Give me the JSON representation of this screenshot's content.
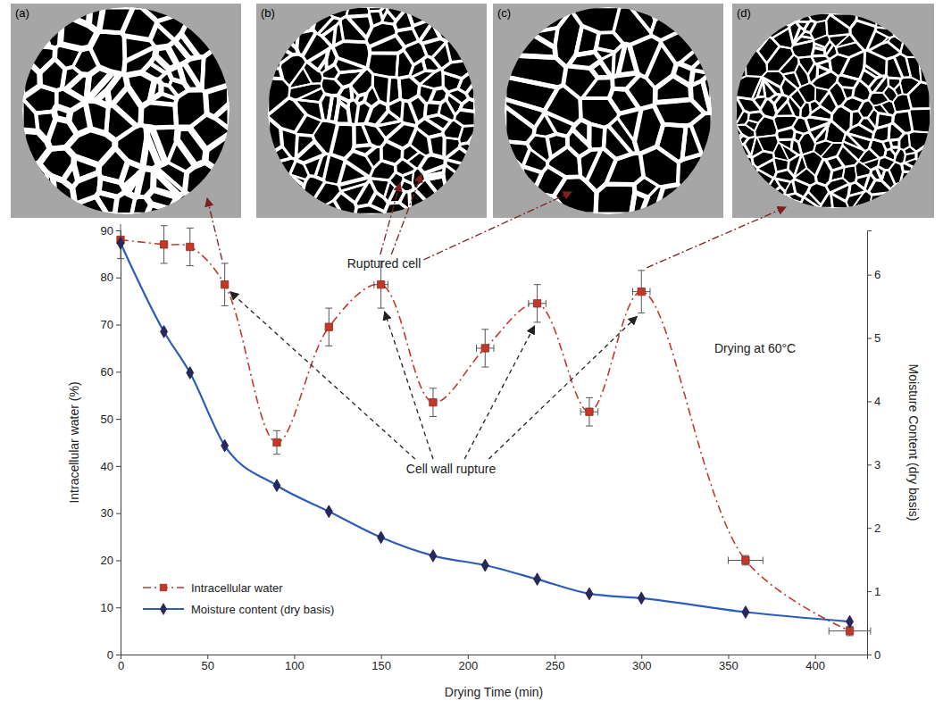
{
  "chart_data": {
    "type": "line",
    "x_label": "Drying Time (min)",
    "y_label": "Intracellular water (%)",
    "y2_label": "Moisture Content (dry basis)",
    "x": [
      0,
      25,
      40,
      60,
      90,
      120,
      150,
      180,
      210,
      240,
      270,
      300,
      360,
      420
    ],
    "xlim": [
      0,
      430
    ],
    "xticks": [
      0,
      50,
      100,
      150,
      200,
      250,
      300,
      350,
      400
    ],
    "ylim": [
      0,
      90
    ],
    "yticks": [
      0,
      10,
      20,
      30,
      40,
      50,
      60,
      70,
      80,
      90
    ],
    "y2lim": [
      0,
      6.7
    ],
    "y2ticks": [
      0,
      1,
      2,
      3,
      4,
      5,
      6
    ],
    "grid": false,
    "legend": "lower left",
    "series": [
      {
        "name": "Intracellular water",
        "color": "#c0392b",
        "marker": "square",
        "line_style": "dashdot",
        "values": [
          88,
          87,
          86.5,
          78.5,
          45,
          69.5,
          78.5,
          53.5,
          65,
          74.5,
          51.5,
          77,
          20,
          5
        ],
        "y_error": [
          4,
          4,
          4,
          4.5,
          2.5,
          4,
          5,
          3,
          4,
          4,
          3,
          4.5,
          1,
          1
        ],
        "x_error": [
          null,
          null,
          null,
          null,
          null,
          null,
          4,
          null,
          5,
          5,
          5,
          5,
          10,
          12
        ]
      },
      {
        "name": "Moisture content (dry basis)",
        "color": "#2e5cb8",
        "marker": "diamond",
        "line_style": "solid",
        "axis": "y2",
        "values": [
          6.5,
          5.1,
          4.45,
          3.3,
          2.67,
          2.26,
          1.85,
          1.56,
          1.41,
          1.19,
          0.96,
          0.89,
          0.67,
          0.52
        ]
      }
    ],
    "annotations": [
      "Ruptured cell",
      "Cell wall rupture",
      "Drying at 60°C"
    ],
    "panel_labels": [
      "(a)",
      "(b)",
      "(c)",
      "(d)"
    ]
  }
}
